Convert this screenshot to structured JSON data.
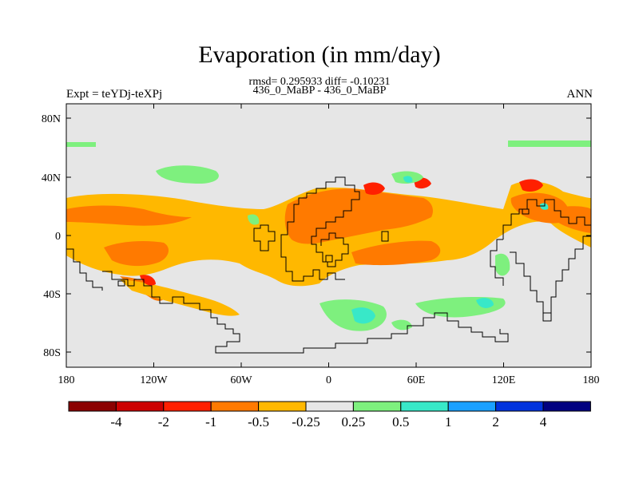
{
  "chart_data": {
    "type": "heatmap",
    "title": "Evaporation (in mm/day)",
    "subtitle_stats": "rmsd= 0.295933 diff= -0.10231",
    "subtitle_case": "436_0_MaBP - 436_0_MaBP",
    "left_label": "Expt = teYDj-teXPj",
    "right_label": "ANN",
    "xlim": [
      -180,
      180
    ],
    "ylim": [
      -90,
      90
    ],
    "x_ticks": [
      "180",
      "120W",
      "60W",
      "0",
      "60E",
      "120E",
      "180"
    ],
    "y_ticks": [
      "80N",
      "40N",
      "0",
      "40S",
      "80S"
    ],
    "colorbar": {
      "levels": [
        "-4",
        "-2",
        "-1",
        "-0.5",
        "-0.25",
        "0.25",
        "0.5",
        "1",
        "2",
        "4"
      ],
      "colors": [
        "#8b0000",
        "#cc0000",
        "#ff2000",
        "#ff7a00",
        "#ffb800",
        "#e6e6e6",
        "#7ef07e",
        "#38e8c8",
        "#1aa0ff",
        "#0033dd",
        "#000080"
      ]
    }
  }
}
